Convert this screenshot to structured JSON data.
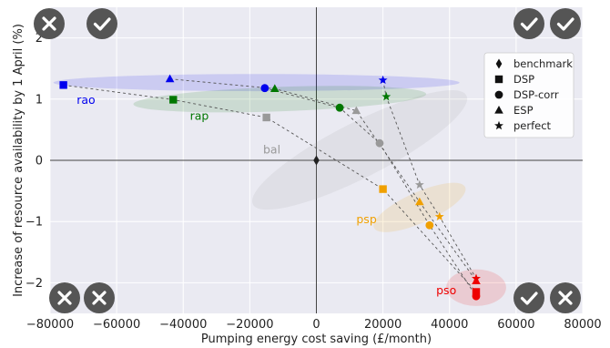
{
  "chart_data": {
    "type": "scatter",
    "title": "",
    "xlabel": "Pumping energy cost saving (£/month)",
    "ylabel": "Increase of resource availability by 1 April (%)",
    "xlim": [
      -80000,
      80000
    ],
    "ylim": [
      -2.5,
      2.5
    ],
    "x_ticks": [
      -80000,
      -60000,
      -40000,
      -20000,
      0,
      20000,
      40000,
      60000,
      80000
    ],
    "y_ticks": [
      -2,
      -1,
      0,
      1,
      2
    ],
    "grid": true,
    "legend_position": "top-right",
    "legend": [
      {
        "label": "benchmark",
        "marker": "diamond"
      },
      {
        "label": "DSP",
        "marker": "square"
      },
      {
        "label": "DSP-corr",
        "marker": "circle"
      },
      {
        "label": "ESP",
        "marker": "triangle"
      },
      {
        "label": "perfect",
        "marker": "star"
      }
    ],
    "benchmark": {
      "x": 0,
      "y": 0,
      "color": "#222222"
    },
    "groups": [
      {
        "name": "rao",
        "color": "#0000ee",
        "points": {
          "DSP": [
            -76000,
            1.23
          ],
          "DSP-corr": [
            -15500,
            1.18
          ],
          "ESP": [
            -44000,
            1.33
          ],
          "perfect": [
            20000,
            1.31
          ]
        },
        "ellipse": {
          "cx": -18000,
          "cy": 1.27,
          "rx": 61000,
          "ry": 0.14,
          "angle": 0
        },
        "label_pos": [
          -72000,
          0.98
        ]
      },
      {
        "name": "rap",
        "color": "#007700",
        "points": {
          "DSP": [
            -43000,
            0.99
          ],
          "DSP-corr": [
            7000,
            0.86
          ],
          "ESP": [
            -12500,
            1.17
          ],
          "perfect": [
            21000,
            1.04
          ]
        },
        "ellipse": {
          "cx": -11000,
          "cy": 1.0,
          "rx": 44000,
          "ry": 0.2,
          "angle": -2
        },
        "label_pos": [
          -38000,
          0.72
        ]
      },
      {
        "name": "bal",
        "color": "#999999",
        "points": {
          "DSP": [
            -15000,
            0.7
          ],
          "DSP-corr": [
            19000,
            0.28
          ],
          "ESP": [
            12000,
            0.81
          ],
          "perfect": [
            31000,
            -0.4
          ]
        },
        "ellipse": {
          "cx": 13000,
          "cy": 0.17,
          "rx": 36000,
          "ry": 0.45,
          "angle": -27
        },
        "label_pos": [
          -16000,
          0.17
        ]
      },
      {
        "name": "psp",
        "color": "#f0a000",
        "points": {
          "DSP": [
            20000,
            -0.47
          ],
          "DSP-corr": [
            34000,
            -1.06
          ],
          "ESP": [
            31000,
            -0.68
          ],
          "perfect": [
            37000,
            -0.92
          ]
        },
        "ellipse": {
          "cx": 31000,
          "cy": -0.77,
          "rx": 15000,
          "ry": 0.25,
          "angle": -24
        },
        "label_pos": [
          12000,
          -0.97
        ]
      },
      {
        "name": "pso",
        "color": "#ee0000",
        "points": {
          "DSP": [
            48000,
            -2.15
          ],
          "DSP-corr": [
            48000,
            -2.22
          ],
          "ESP": [
            48000,
            -1.97
          ],
          "perfect": [
            48000,
            -1.93
          ]
        },
        "ellipse": {
          "cx": 48000,
          "cy": -2.08,
          "rx": 9000,
          "ry": 0.3,
          "angle": 0
        },
        "label_pos": [
          36000,
          -2.13
        ]
      }
    ],
    "style": {
      "plot_bg": "#eaeaf2",
      "grid": "#ffffff",
      "axis_line": "#444444"
    }
  },
  "controls": {
    "top_left": [
      {
        "icon": "close-icon"
      },
      {
        "icon": "check-icon"
      }
    ],
    "top_right": [
      {
        "icon": "check-icon"
      },
      {
        "icon": "check-icon"
      }
    ],
    "bottom_left": [
      {
        "icon": "close-icon"
      },
      {
        "icon": "close-icon"
      }
    ],
    "bottom_right": [
      {
        "icon": "check-icon"
      },
      {
        "icon": "close-icon"
      }
    ]
  }
}
